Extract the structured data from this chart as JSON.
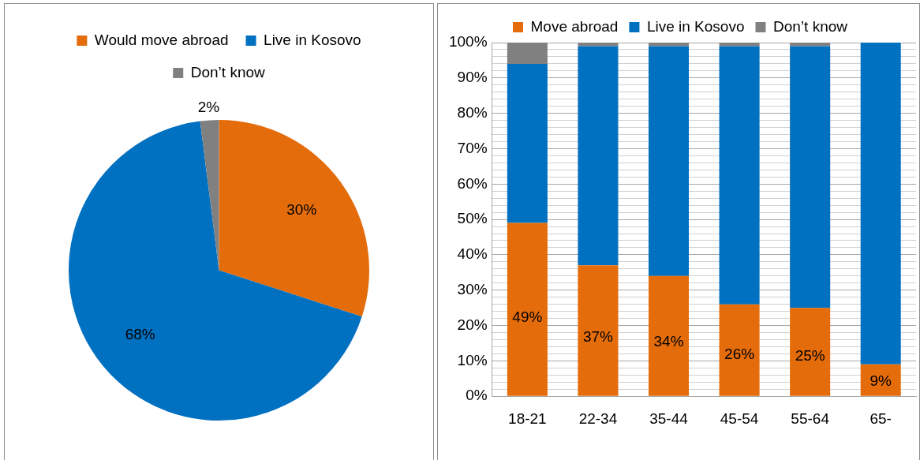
{
  "chart_data": [
    {
      "type": "pie",
      "categories": [
        "Would move abroad",
        "Live in Kosovo",
        "Don’t know"
      ],
      "values": [
        30,
        68,
        2
      ],
      "colors": [
        "#e46c0a",
        "#0070c0",
        "#808080"
      ],
      "value_labels": [
        "30%",
        "68%",
        "2%"
      ],
      "legend": "top"
    },
    {
      "type": "bar",
      "stacked": true,
      "categories": [
        "18-21",
        "22-34",
        "35-44",
        "45-54",
        "55-64",
        "65-"
      ],
      "series": [
        {
          "name": "Move abroad",
          "color": "#e46c0a",
          "values": [
            49,
            37,
            34,
            26,
            25,
            9
          ],
          "value_labels": [
            "49%",
            "37%",
            "34%",
            "26%",
            "25%",
            "9%"
          ]
        },
        {
          "name": "Live in Kosovo",
          "color": "#0070c0",
          "values": [
            45,
            62,
            65,
            73,
            74,
            91
          ]
        },
        {
          "name": "Don’t know",
          "color": "#808080",
          "values": [
            6,
            1,
            1,
            1,
            1,
            0
          ]
        }
      ],
      "ylim": [
        0,
        100
      ],
      "yticks": [
        {
          "value": 0,
          "label": "0%"
        },
        {
          "value": 2,
          "label": null
        },
        {
          "value": 4,
          "label": null
        },
        {
          "value": 6,
          "label": null
        },
        {
          "value": 8,
          "label": null
        },
        {
          "value": 10,
          "label": "10%"
        },
        {
          "value": 12,
          "label": null
        },
        {
          "value": 14,
          "label": null
        },
        {
          "value": 16,
          "label": null
        },
        {
          "value": 18,
          "label": null
        },
        {
          "value": 20,
          "label": "20%"
        },
        {
          "value": 22,
          "label": null
        },
        {
          "value": 24,
          "label": null
        },
        {
          "value": 26,
          "label": null
        },
        {
          "value": 28,
          "label": null
        },
        {
          "value": 30,
          "label": "30%"
        },
        {
          "value": 32,
          "label": null
        },
        {
          "value": 34,
          "label": null
        },
        {
          "value": 36,
          "label": null
        },
        {
          "value": 38,
          "label": null
        },
        {
          "value": 40,
          "label": "40%"
        },
        {
          "value": 42,
          "label": null
        },
        {
          "value": 44,
          "label": null
        },
        {
          "value": 46,
          "label": null
        },
        {
          "value": 48,
          "label": null
        },
        {
          "value": 50,
          "label": "50%"
        },
        {
          "value": 52,
          "label": null
        },
        {
          "value": 54,
          "label": null
        },
        {
          "value": 56,
          "label": null
        },
        {
          "value": 58,
          "label": null
        },
        {
          "value": 60,
          "label": "60%"
        },
        {
          "value": 62,
          "label": null
        },
        {
          "value": 64,
          "label": null
        },
        {
          "value": 66,
          "label": null
        },
        {
          "value": 68,
          "label": null
        },
        {
          "value": 70,
          "label": "70%"
        },
        {
          "value": 72,
          "label": null
        },
        {
          "value": 74,
          "label": null
        },
        {
          "value": 76,
          "label": null
        },
        {
          "value": 78,
          "label": null
        },
        {
          "value": 80,
          "label": "80%"
        },
        {
          "value": 82,
          "label": null
        },
        {
          "value": 84,
          "label": null
        },
        {
          "value": 86,
          "label": null
        },
        {
          "value": 88,
          "label": null
        },
        {
          "value": 90,
          "label": "90%"
        },
        {
          "value": 92,
          "label": null
        },
        {
          "value": 94,
          "label": null
        },
        {
          "value": 96,
          "label": null
        },
        {
          "value": 98,
          "label": null
        },
        {
          "value": 100,
          "label": "100%"
        }
      ],
      "grid": "y",
      "legend": "top"
    }
  ]
}
